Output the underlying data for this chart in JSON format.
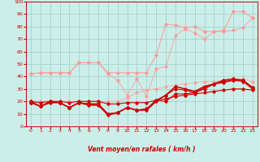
{
  "xlabel": "Vent moyen/en rafales ( km/h )",
  "xlim": [
    -0.5,
    23.5
  ],
  "ylim": [
    0,
    100
  ],
  "yticks": [
    0,
    10,
    20,
    30,
    40,
    50,
    60,
    70,
    80,
    90,
    100
  ],
  "xticks": [
    0,
    1,
    2,
    3,
    4,
    5,
    6,
    7,
    8,
    9,
    10,
    11,
    12,
    13,
    14,
    15,
    16,
    17,
    18,
    19,
    20,
    21,
    22,
    23
  ],
  "bg_color": "#cceee8",
  "grid_color": "#99cccc",
  "axis_color": "#cc0000",
  "pink": "#ff9999",
  "red": "#cc0000",
  "line_pink1_y": [
    42,
    43,
    43,
    43,
    43,
    51,
    51,
    51,
    43,
    43,
    43,
    43,
    43,
    57,
    82,
    81,
    79,
    80,
    76,
    76,
    77,
    92,
    92,
    87
  ],
  "line_pink2_y": [
    42,
    43,
    43,
    43,
    43,
    51,
    51,
    51,
    42,
    37,
    25,
    38,
    24,
    46,
    48,
    73,
    78,
    75,
    70,
    76,
    76,
    77,
    79,
    87
  ],
  "line_pink3_y": [
    20,
    20,
    20,
    20,
    20,
    20,
    20,
    20,
    20,
    20,
    23,
    27,
    29,
    30,
    32,
    33,
    34,
    35,
    36,
    36,
    37,
    38,
    38,
    36
  ],
  "line_red1_y": [
    20,
    16,
    19,
    19,
    15,
    19,
    17,
    17,
    9,
    11,
    15,
    13,
    13,
    20,
    25,
    32,
    30,
    28,
    32,
    34,
    37,
    38,
    37,
    31
  ],
  "line_red2_y": [
    19,
    16,
    20,
    19,
    15,
    19,
    18,
    18,
    10,
    11,
    15,
    13,
    14,
    21,
    25,
    30,
    29,
    27,
    31,
    34,
    36,
    37,
    37,
    31
  ],
  "line_red3_y": [
    19,
    16,
    20,
    19,
    15,
    19,
    18,
    18,
    10,
    11,
    15,
    13,
    14,
    21,
    20,
    26,
    26,
    27,
    30,
    34,
    35,
    37,
    36,
    30
  ],
  "line_red4_y": [
    20,
    19,
    20,
    20,
    19,
    20,
    20,
    20,
    18,
    18,
    19,
    19,
    19,
    21,
    22,
    24,
    25,
    26,
    27,
    28,
    29,
    30,
    30,
    29
  ],
  "arrow_symbols": [
    "↗",
    "↗",
    "↗",
    "↗",
    "↗",
    "↗",
    "↗",
    "→",
    "→",
    "↙",
    "↗",
    "↑",
    "↑",
    "↑",
    "↗",
    "↗",
    "↗",
    "↗",
    "→",
    "→",
    "→",
    "→",
    "→",
    "→"
  ]
}
